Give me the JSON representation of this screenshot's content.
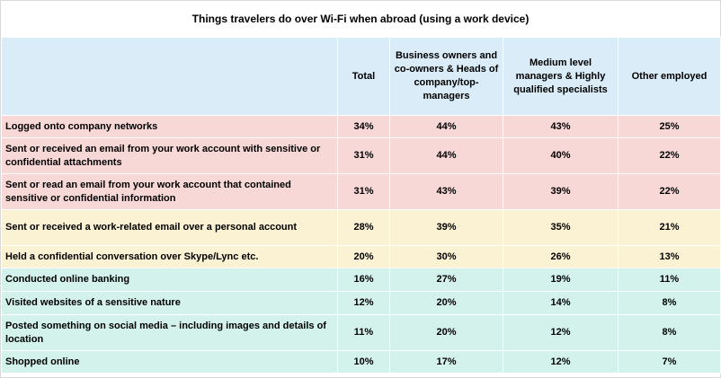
{
  "chart_data": {
    "type": "table",
    "title": "Things travelers do over Wi-Fi when abroad (using a work device)",
    "columns": [
      "",
      "Total",
      "Business owners and co-owners & Heads of company/top-managers",
      "Medium level managers & Highly qualified specialists",
      "Other employed"
    ],
    "rows": [
      {
        "label": "Logged onto company networks",
        "values": [
          "34%",
          "44%",
          "43%",
          "25%"
        ],
        "group": "red"
      },
      {
        "label": "Sent or received an email from your work account with sensitive or confidential attachments",
        "values": [
          "31%",
          "44%",
          "40%",
          "22%"
        ],
        "group": "red"
      },
      {
        "label": "Sent or read an email from your work account that contained sensitive or confidential information",
        "values": [
          "31%",
          "43%",
          "39%",
          "22%"
        ],
        "group": "red"
      },
      {
        "label": "Sent or received a work-related email over a personal account",
        "values": [
          "28%",
          "39%",
          "35%",
          "21%"
        ],
        "group": "yellow"
      },
      {
        "label": "Held a confidential conversation over Skype/Lync etc.",
        "values": [
          "20%",
          "30%",
          "26%",
          "13%"
        ],
        "group": "yellow"
      },
      {
        "label": "Conducted online banking",
        "values": [
          "16%",
          "27%",
          "19%",
          "11%"
        ],
        "group": "teal"
      },
      {
        "label": "Visited websites of a sensitive nature",
        "values": [
          "12%",
          "20%",
          "14%",
          "8%"
        ],
        "group": "teal"
      },
      {
        "label": "Posted something on social media – including images and details of location",
        "values": [
          "11%",
          "20%",
          "12%",
          "8%"
        ],
        "group": "teal"
      },
      {
        "label": "Shopped online",
        "values": [
          "10%",
          "17%",
          "12%",
          "7%"
        ],
        "group": "teal"
      }
    ],
    "colors": {
      "header": "#d9ecf7",
      "red": "#f8d7d7",
      "yellow": "#fbf1d3",
      "teal": "#d3f2ec"
    }
  }
}
